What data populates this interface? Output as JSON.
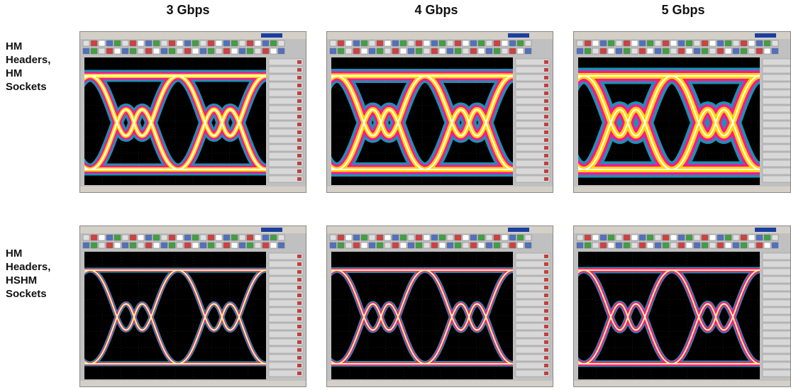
{
  "columns": [
    {
      "label": "3 Gbps"
    },
    {
      "label": "4 Gbps"
    },
    {
      "label": "5 Gbps"
    }
  ],
  "rows": [
    {
      "lines": [
        "HM",
        "Headers,",
        "HM",
        "Sockets"
      ]
    },
    {
      "lines": [
        "HM",
        "Headers,",
        "HSHM",
        "Sockets"
      ]
    }
  ],
  "colors": {
    "scope_background": "#000000",
    "window_chrome": "#c0c0c0",
    "density_low": "#1e90b4",
    "density_mid": "#ff1493",
    "density_high": "#ffd700",
    "density_peak": "#ffffff"
  }
}
